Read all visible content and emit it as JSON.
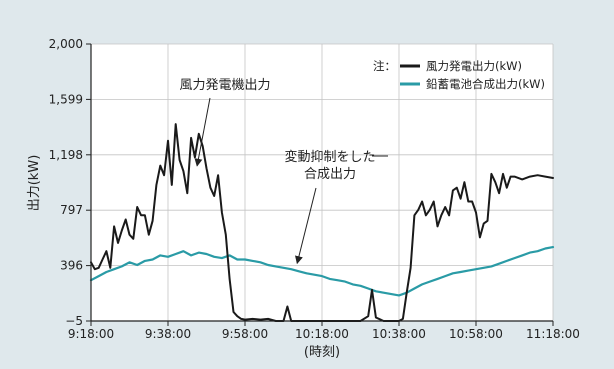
{
  "chart_data": {
    "type": "line",
    "title": "",
    "xlabel": "(時刻)",
    "ylabel": "出力(kW)",
    "xlim": [
      "9:18:00",
      "11:18:00"
    ],
    "ylim": [
      -5,
      2000
    ],
    "x_ticks": [
      "9:18:00",
      "9:38:00",
      "9:58:00",
      "10:18:00",
      "10:38:00",
      "10:58:00",
      "11:18:00"
    ],
    "y_ticks": [
      -5,
      396,
      797,
      1198,
      1599,
      2000
    ],
    "y_tick_labels": [
      "−5",
      "396",
      "797",
      "1,198",
      "1,599",
      "2,000"
    ],
    "grid": true,
    "legend_position": "top-right",
    "legend_prefix": "注：",
    "series": [
      {
        "name": "風力発電出力(kW)",
        "color": "#1a1a1a",
        "x": [
          "9:18:00",
          "9:19:00",
          "9:20:00",
          "9:21:00",
          "9:22:00",
          "9:23:00",
          "9:24:00",
          "9:25:00",
          "9:26:00",
          "9:27:00",
          "9:28:00",
          "9:29:00",
          "9:30:00",
          "9:31:00",
          "9:32:00",
          "9:33:00",
          "9:34:00",
          "9:35:00",
          "9:36:00",
          "9:37:00",
          "9:38:00",
          "9:39:00",
          "9:40:00",
          "9:41:00",
          "9:42:00",
          "9:43:00",
          "9:44:00",
          "9:45:00",
          "9:46:00",
          "9:47:00",
          "9:48:00",
          "9:49:00",
          "9:50:00",
          "9:51:00",
          "9:52:00",
          "9:53:00",
          "9:54:00",
          "9:55:00",
          "9:56:00",
          "9:57:00",
          "9:58:00",
          "10:00:00",
          "10:02:00",
          "10:04:00",
          "10:06:00",
          "10:08:00",
          "10:09:00",
          "10:10:00",
          "10:12:00",
          "10:16:00",
          "10:20:00",
          "10:24:00",
          "10:28:00",
          "10:30:00",
          "10:31:00",
          "10:32:00",
          "10:34:00",
          "10:36:00",
          "10:38:00",
          "10:39:00",
          "10:40:00",
          "10:41:00",
          "10:42:00",
          "10:43:00",
          "10:44:00",
          "10:45:00",
          "10:46:00",
          "10:47:00",
          "10:48:00",
          "10:49:00",
          "10:50:00",
          "10:51:00",
          "10:52:00",
          "10:53:00",
          "10:54:00",
          "10:55:00",
          "10:56:00",
          "10:57:00",
          "10:58:00",
          "10:59:00",
          "11:00:00",
          "11:01:00",
          "11:02:00",
          "11:03:00",
          "11:04:00",
          "11:05:00",
          "11:06:00",
          "11:07:00",
          "11:08:00",
          "11:10:00",
          "11:12:00",
          "11:14:00",
          "11:16:00",
          "11:18:00"
        ],
        "y": [
          420,
          370,
          380,
          440,
          500,
          380,
          680,
          560,
          650,
          730,
          620,
          590,
          820,
          760,
          760,
          620,
          720,
          980,
          1120,
          1050,
          1300,
          980,
          1420,
          1160,
          1080,
          920,
          1320,
          1180,
          1350,
          1260,
          1100,
          960,
          900,
          1050,
          780,
          620,
          300,
          60,
          30,
          10,
          5,
          10,
          5,
          10,
          -5,
          -5,
          100,
          -5,
          -5,
          -5,
          -5,
          -5,
          -5,
          30,
          220,
          20,
          -5,
          -5,
          -5,
          10,
          200,
          380,
          760,
          800,
          860,
          760,
          800,
          860,
          680,
          760,
          820,
          760,
          940,
          960,
          880,
          1000,
          860,
          860,
          780,
          600,
          700,
          720,
          1060,
          1000,
          920,
          1060,
          960,
          1040,
          1040,
          1020,
          1040,
          1050,
          1040,
          1030
        ]
      },
      {
        "name": "鉛蓄電池合成出力(kW)",
        "color": "#2a9ba6",
        "x": [
          "9:18:00",
          "9:20:00",
          "9:22:00",
          "9:24:00",
          "9:26:00",
          "9:28:00",
          "9:30:00",
          "9:32:00",
          "9:34:00",
          "9:36:00",
          "9:38:00",
          "9:40:00",
          "9:42:00",
          "9:44:00",
          "9:46:00",
          "9:48:00",
          "9:50:00",
          "9:52:00",
          "9:54:00",
          "9:56:00",
          "9:58:00",
          "10:00:00",
          "10:02:00",
          "10:04:00",
          "10:06:00",
          "10:08:00",
          "10:10:00",
          "10:12:00",
          "10:14:00",
          "10:16:00",
          "10:18:00",
          "10:20:00",
          "10:22:00",
          "10:24:00",
          "10:26:00",
          "10:28:00",
          "10:30:00",
          "10:32:00",
          "10:34:00",
          "10:36:00",
          "10:38:00",
          "10:40:00",
          "10:42:00",
          "10:44:00",
          "10:46:00",
          "10:48:00",
          "10:50:00",
          "10:52:00",
          "10:54:00",
          "10:56:00",
          "10:58:00",
          "11:00:00",
          "11:02:00",
          "11:04:00",
          "11:06:00",
          "11:08:00",
          "11:10:00",
          "11:12:00",
          "11:14:00",
          "11:16:00",
          "11:18:00"
        ],
        "y": [
          290,
          320,
          350,
          370,
          390,
          420,
          400,
          430,
          440,
          470,
          460,
          480,
          500,
          470,
          490,
          480,
          460,
          450,
          470,
          440,
          440,
          430,
          420,
          400,
          390,
          380,
          370,
          355,
          340,
          330,
          320,
          300,
          290,
          280,
          260,
          250,
          230,
          210,
          200,
          190,
          180,
          200,
          230,
          260,
          280,
          300,
          320,
          340,
          350,
          360,
          370,
          380,
          390,
          410,
          430,
          450,
          470,
          490,
          500,
          520,
          530
        ]
      }
    ],
    "annotations": [
      {
        "label": "風力発電機出力",
        "target_x": "9:44:00",
        "target_y": 1090
      },
      {
        "label": "変動抑制をした合成出力",
        "lines": [
          "変動抑制をした",
          "合成出力"
        ],
        "target_x": "10:10:00",
        "target_y": 370
      }
    ]
  }
}
